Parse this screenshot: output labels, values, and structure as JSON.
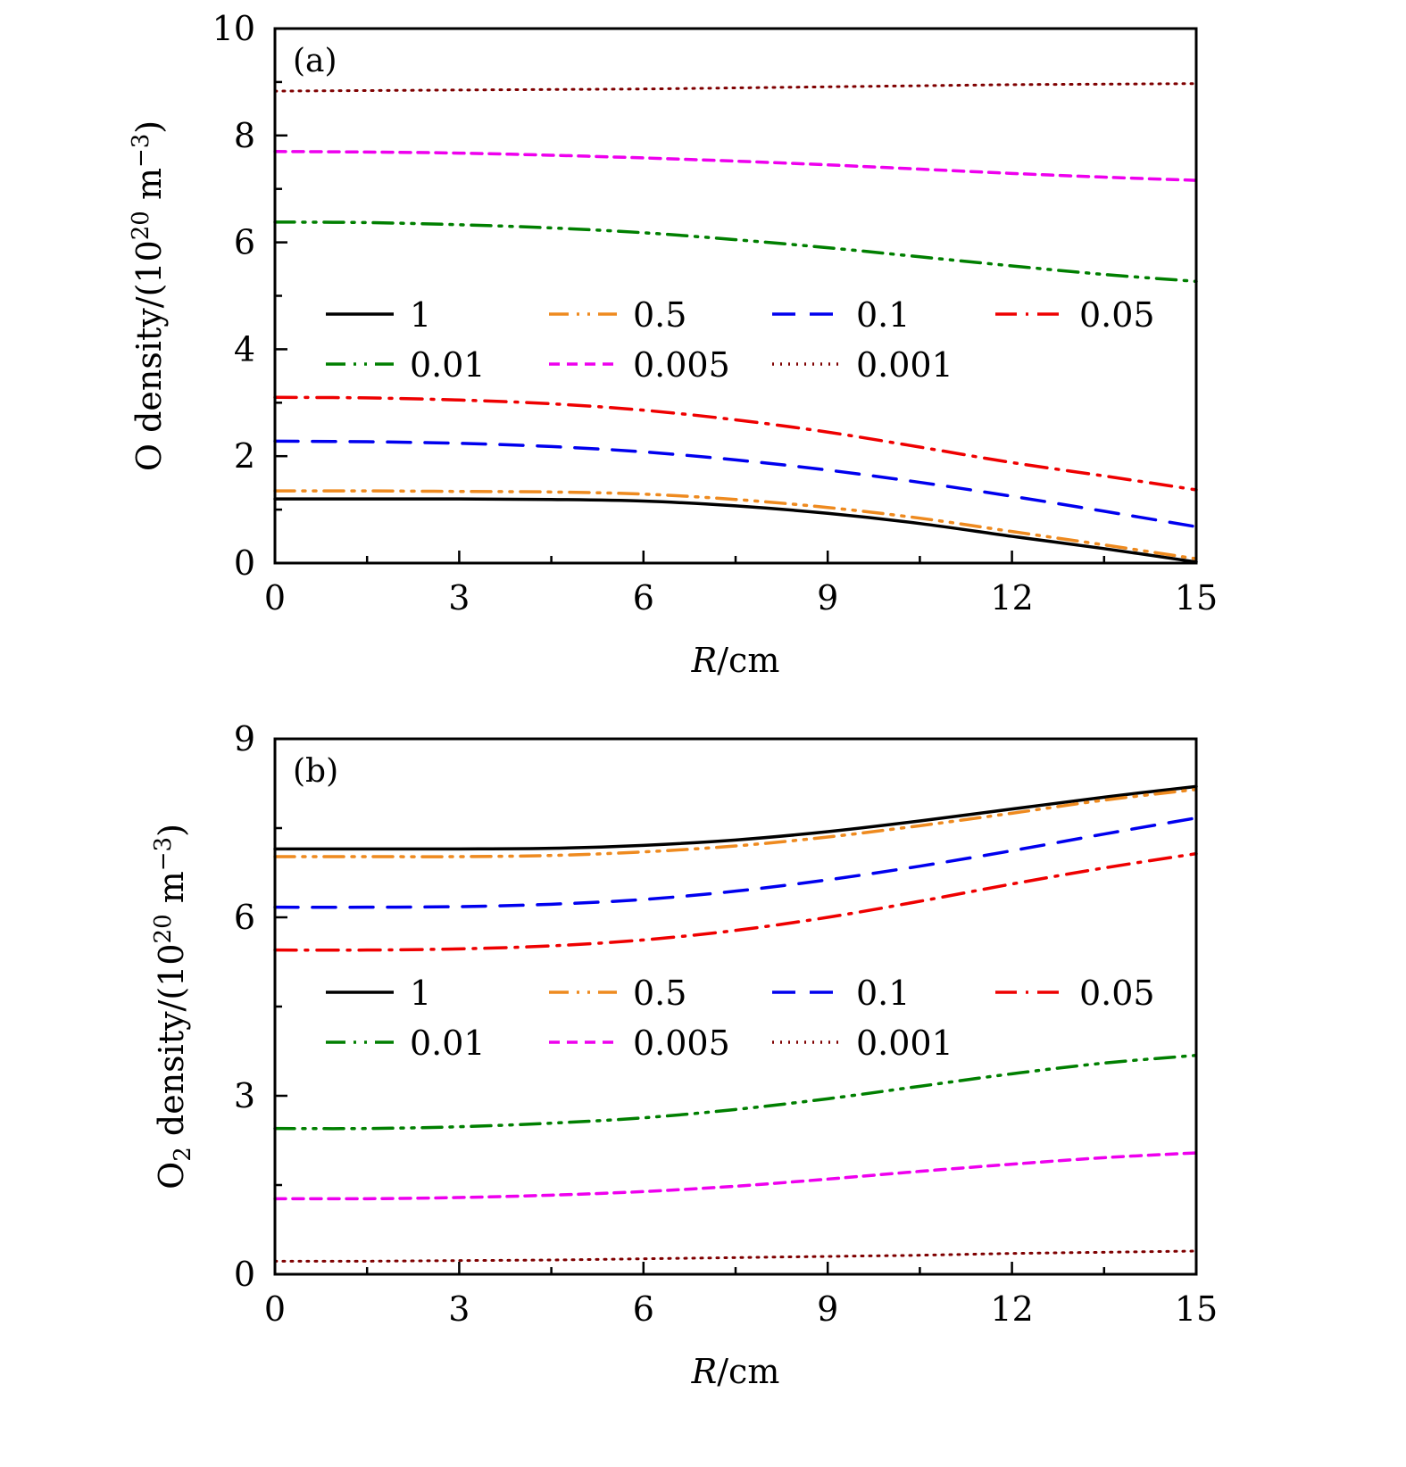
{
  "chart_data": [
    {
      "type": "line",
      "panel_label": "(a)",
      "xlabel": "R/cm",
      "ylabel": "O density/(10^20 m^-3)",
      "ylabel_parts": {
        "main": "O density/(10",
        "sup1": "20",
        "mid": " m",
        "sup2": "−3",
        "end": ")"
      },
      "xlim": [
        0,
        15
      ],
      "ylim": [
        0,
        10
      ],
      "xticks": [
        0,
        3,
        6,
        9,
        12,
        15
      ],
      "xtick_labels": [
        "0",
        "3",
        "6",
        "9",
        "12",
        "15"
      ],
      "yticks": [
        0,
        2,
        4,
        6,
        8,
        10
      ],
      "ytick_labels": [
        "0",
        "2",
        "4",
        "6",
        "8",
        "10"
      ],
      "grid": false,
      "legend_placement": "center",
      "x": [
        0,
        1.5,
        3,
        4.5,
        6,
        7.5,
        9,
        10.5,
        12,
        13.5,
        15
      ],
      "series": [
        {
          "name": "1",
          "color": "#000000",
          "style": "solid",
          "values": [
            1.2,
            1.2,
            1.2,
            1.19,
            1.16,
            1.07,
            0.93,
            0.74,
            0.5,
            0.27,
            0.02
          ]
        },
        {
          "name": "0.5",
          "color": "#ee8a1f",
          "style": "dashdotdot",
          "values": [
            1.35,
            1.35,
            1.34,
            1.33,
            1.29,
            1.19,
            1.04,
            0.84,
            0.59,
            0.34,
            0.08
          ]
        },
        {
          "name": "0.1",
          "color": "#0000ee",
          "style": "dash",
          "values": [
            2.28,
            2.27,
            2.24,
            2.18,
            2.08,
            1.93,
            1.74,
            1.51,
            1.25,
            0.97,
            0.68
          ]
        },
        {
          "name": "0.05",
          "color": "#ee0000",
          "style": "dashdot",
          "values": [
            3.1,
            3.09,
            3.05,
            2.98,
            2.86,
            2.68,
            2.45,
            2.17,
            1.88,
            1.63,
            1.37
          ]
        },
        {
          "name": "0.01",
          "color": "#007f00",
          "style": "dashdotdot",
          "values": [
            6.38,
            6.37,
            6.33,
            6.27,
            6.18,
            6.05,
            5.9,
            5.73,
            5.56,
            5.4,
            5.27
          ]
        },
        {
          "name": "0.005",
          "color": "#ee00ee",
          "style": "shortdash",
          "values": [
            7.7,
            7.69,
            7.67,
            7.63,
            7.58,
            7.52,
            7.45,
            7.37,
            7.29,
            7.22,
            7.16
          ]
        },
        {
          "name": "0.001",
          "color": "#7f0000",
          "style": "dot",
          "values": [
            8.83,
            8.84,
            8.85,
            8.86,
            8.87,
            8.89,
            8.91,
            8.93,
            8.95,
            8.96,
            8.97
          ]
        }
      ]
    },
    {
      "type": "line",
      "panel_label": "(b)",
      "xlabel": "R/cm",
      "ylabel": "O2 density/(10^20 m^-3)",
      "ylabel_parts": {
        "pre": "O",
        "sub": "2",
        "main": " density/(10",
        "sup1": "20",
        "mid": " m",
        "sup2": "−3",
        "end": ")"
      },
      "xlim": [
        0,
        15
      ],
      "ylim": [
        0,
        9
      ],
      "xticks": [
        0,
        3,
        6,
        9,
        12,
        15
      ],
      "xtick_labels": [
        "0",
        "3",
        "6",
        "9",
        "12",
        "15"
      ],
      "yticks": [
        0,
        3,
        6,
        9
      ],
      "ytick_labels": [
        "0",
        "3",
        "6",
        "9"
      ],
      "grid": false,
      "legend_placement": "center",
      "x": [
        0,
        1.5,
        3,
        4.5,
        6,
        7.5,
        9,
        10.5,
        12,
        13.5,
        15
      ],
      "series": [
        {
          "name": "1",
          "color": "#000000",
          "style": "solid",
          "values": [
            7.15,
            7.15,
            7.15,
            7.16,
            7.21,
            7.3,
            7.44,
            7.62,
            7.82,
            8.02,
            8.2
          ]
        },
        {
          "name": "0.5",
          "color": "#ee8a1f",
          "style": "dashdotdot",
          "values": [
            7.02,
            7.02,
            7.02,
            7.04,
            7.1,
            7.2,
            7.35,
            7.54,
            7.75,
            7.97,
            8.15
          ]
        },
        {
          "name": "0.1",
          "color": "#0000ee",
          "style": "dash",
          "values": [
            6.17,
            6.17,
            6.18,
            6.22,
            6.3,
            6.44,
            6.63,
            6.86,
            7.12,
            7.4,
            7.67
          ]
        },
        {
          "name": "0.05",
          "color": "#ee0000",
          "style": "dashdot",
          "values": [
            5.45,
            5.45,
            5.47,
            5.52,
            5.62,
            5.78,
            6.0,
            6.27,
            6.56,
            6.83,
            7.07
          ]
        },
        {
          "name": "0.01",
          "color": "#007f00",
          "style": "dashdotdot",
          "values": [
            2.45,
            2.45,
            2.48,
            2.54,
            2.63,
            2.77,
            2.95,
            3.16,
            3.37,
            3.55,
            3.68
          ]
        },
        {
          "name": "0.005",
          "color": "#ee00ee",
          "style": "shortdash",
          "values": [
            1.27,
            1.27,
            1.29,
            1.33,
            1.39,
            1.48,
            1.6,
            1.73,
            1.85,
            1.96,
            2.04
          ]
        },
        {
          "name": "0.001",
          "color": "#7f0000",
          "style": "dot",
          "values": [
            0.22,
            0.22,
            0.23,
            0.24,
            0.26,
            0.28,
            0.3,
            0.32,
            0.35,
            0.37,
            0.39
          ]
        }
      ]
    }
  ]
}
